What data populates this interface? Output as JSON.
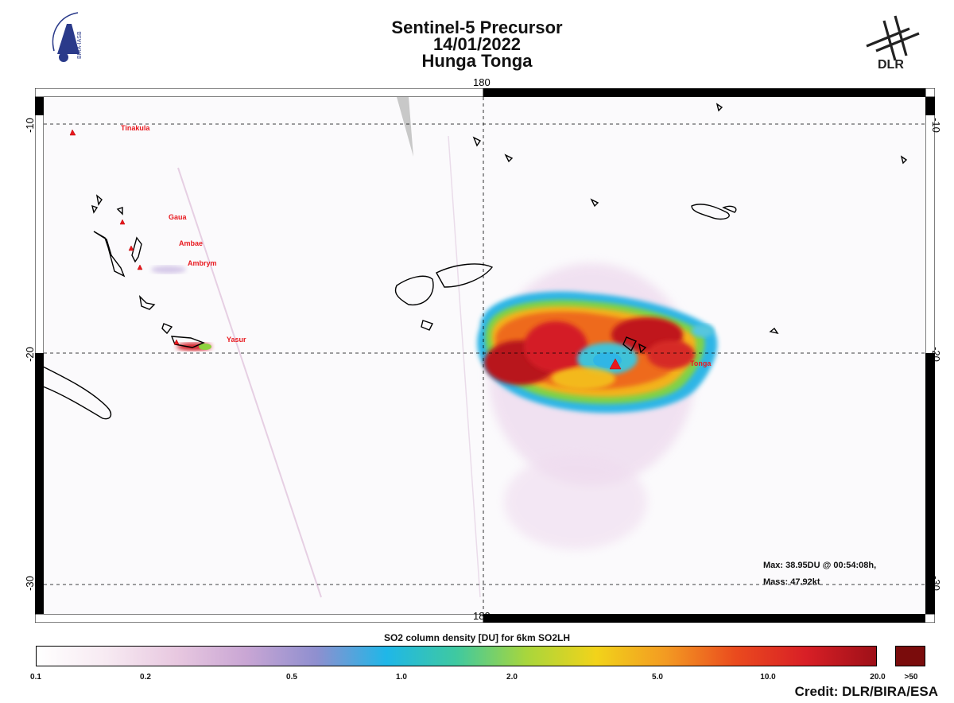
{
  "title": {
    "line1": "Sentinel-5 Precursor",
    "line2": "14/01/2022",
    "line3": "Hunga Tonga"
  },
  "logos": {
    "left_text": "BIRA-IASB",
    "right_text": "DLR"
  },
  "axes": {
    "lon_top": "180",
    "lon_bottom": "180",
    "lat_left": [
      "-10",
      "-20",
      "-30"
    ],
    "lat_right": [
      "-10",
      "-20",
      "-30"
    ]
  },
  "volcanoes": [
    {
      "name": "Tinakula"
    },
    {
      "name": "Gaua"
    },
    {
      "name": "Ambae"
    },
    {
      "name": "Ambrym"
    },
    {
      "name": "Yasur"
    },
    {
      "name": "Tonga"
    }
  ],
  "stats": {
    "max": "Max:  38.95DU @ 00:54:08h,",
    "mass": "Mass:  47.92kt"
  },
  "colorbar": {
    "title": "SO2 column density [DU] for 6km SO2LH",
    "labels": [
      "0.1",
      "0.2",
      "0.5",
      "1.0",
      "2.0",
      "5.0",
      "10.0",
      "20.0",
      ">50"
    ],
    "stops": [
      "#ffffff",
      "#f7eaf2",
      "#e8c8e0",
      "#c9a6d4",
      "#8f8fcf",
      "#1fb7e8",
      "#3fc9a0",
      "#a8d63c",
      "#f2d31a",
      "#f39a22",
      "#ea4a1e",
      "#d81f26",
      "#9e1018"
    ],
    "overflow_color": "#7a0c0c"
  },
  "credit": "Credit: DLR/BIRA/ESA"
}
